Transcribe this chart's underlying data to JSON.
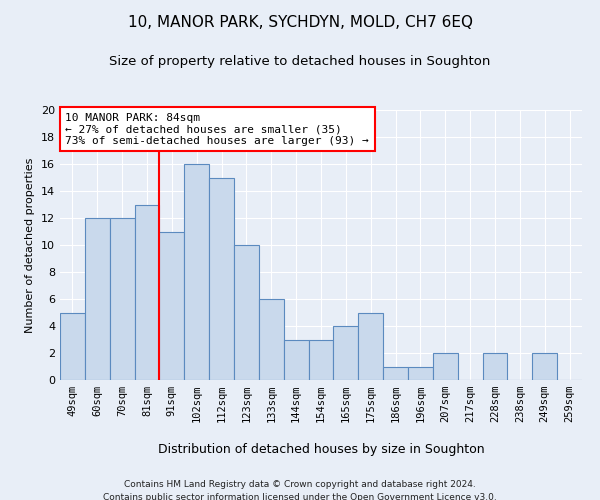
{
  "title": "10, MANOR PARK, SYCHDYN, MOLD, CH7 6EQ",
  "subtitle": "Size of property relative to detached houses in Soughton",
  "xlabel": "Distribution of detached houses by size in Soughton",
  "ylabel": "Number of detached properties",
  "categories": [
    "49sqm",
    "60sqm",
    "70sqm",
    "81sqm",
    "91sqm",
    "102sqm",
    "112sqm",
    "123sqm",
    "133sqm",
    "144sqm",
    "154sqm",
    "165sqm",
    "175sqm",
    "186sqm",
    "196sqm",
    "207sqm",
    "217sqm",
    "228sqm",
    "238sqm",
    "249sqm",
    "259sqm"
  ],
  "values": [
    5,
    12,
    12,
    13,
    11,
    16,
    15,
    10,
    6,
    3,
    3,
    4,
    5,
    1,
    1,
    2,
    0,
    2,
    0,
    2,
    0
  ],
  "bar_color": "#c9d9ec",
  "bar_edge_color": "#5b8abf",
  "property_line_x": 3.5,
  "annotation_text": "10 MANOR PARK: 84sqm\n← 27% of detached houses are smaller (35)\n73% of semi-detached houses are larger (93) →",
  "annotation_box_color": "white",
  "annotation_box_edge_color": "red",
  "vline_color": "red",
  "ylim": [
    0,
    20
  ],
  "yticks": [
    0,
    2,
    4,
    6,
    8,
    10,
    12,
    14,
    16,
    18,
    20
  ],
  "footnote1": "Contains HM Land Registry data © Crown copyright and database right 2024.",
  "footnote2": "Contains public sector information licensed under the Open Government Licence v3.0.",
  "background_color": "#e8eef7",
  "grid_color": "white",
  "title_fontsize": 11,
  "subtitle_fontsize": 9.5
}
